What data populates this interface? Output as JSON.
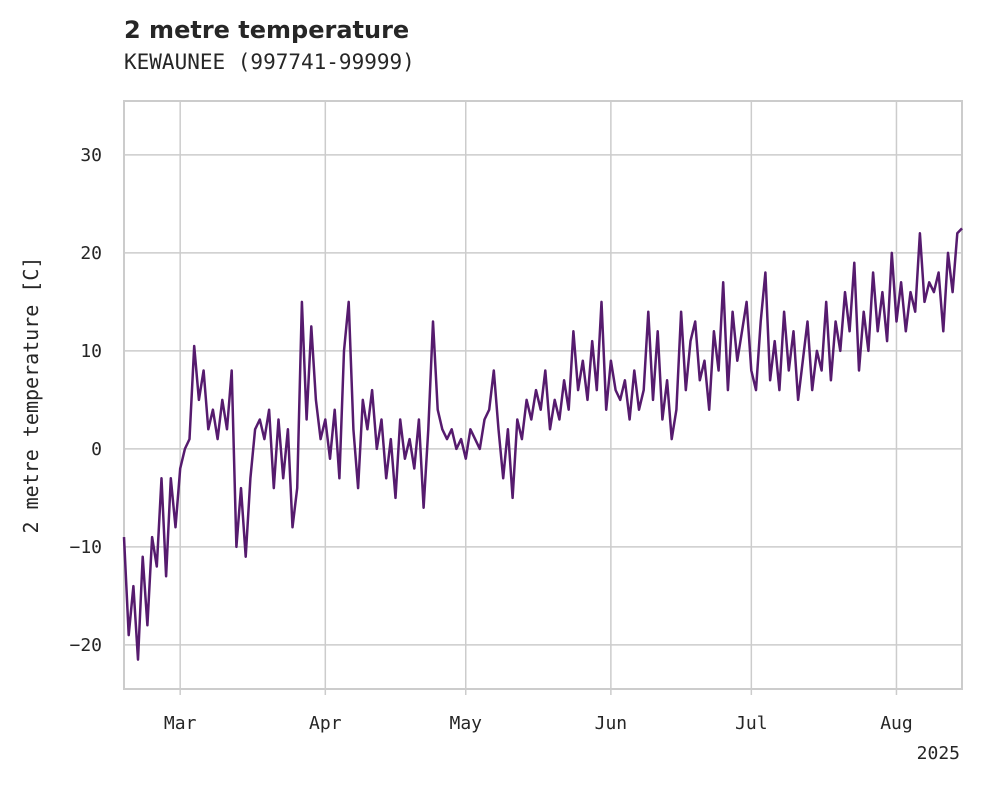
{
  "title": "2 metre temperature",
  "subtitle": "KEWAUNEE (997741-99999)",
  "colors": {
    "line": "#561b6e",
    "grid": "#cccccc",
    "frame": "#cccccc",
    "text": "#262626"
  },
  "chart_data": {
    "type": "line",
    "title": "2 metre temperature",
    "subtitle": "KEWAUNEE (997741-99999)",
    "xlabel": "",
    "ylabel": "2 metre temperature [C]",
    "xlim": [
      "2025-02-17",
      "2025-08-15"
    ],
    "ylim": [
      -24.5,
      35.5
    ],
    "yticks": [
      -20,
      -10,
      0,
      10,
      20,
      30
    ],
    "xticks": [
      {
        "date": "2025-03-01",
        "label": "Mar"
      },
      {
        "date": "2025-04-01",
        "label": "Apr"
      },
      {
        "date": "2025-05-01",
        "label": "May"
      },
      {
        "date": "2025-06-01",
        "label": "Jun"
      },
      {
        "date": "2025-07-01",
        "label": "Jul"
      },
      {
        "date": "2025-08-01",
        "label": "Aug"
      }
    ],
    "x_offset_label": "2025",
    "grid": true,
    "series": [
      {
        "points": [
          [
            "2025-02-17",
            -9
          ],
          [
            "2025-02-18",
            -19
          ],
          [
            "2025-02-19",
            -14
          ],
          [
            "2025-02-20",
            -21.5
          ],
          [
            "2025-02-21",
            -11
          ],
          [
            "2025-02-22",
            -18
          ],
          [
            "2025-02-23",
            -9
          ],
          [
            "2025-02-24",
            -12
          ],
          [
            "2025-02-25",
            -3
          ],
          [
            "2025-02-26",
            -13
          ],
          [
            "2025-02-27",
            -3
          ],
          [
            "2025-02-28",
            -8
          ],
          [
            "2025-03-01",
            -2
          ],
          [
            "2025-03-02",
            0
          ],
          [
            "2025-03-03",
            1
          ],
          [
            "2025-03-04",
            10.5
          ],
          [
            "2025-03-05",
            5
          ],
          [
            "2025-03-06",
            8
          ],
          [
            "2025-03-07",
            2
          ],
          [
            "2025-03-08",
            4
          ],
          [
            "2025-03-09",
            1
          ],
          [
            "2025-03-10",
            5
          ],
          [
            "2025-03-11",
            2
          ],
          [
            "2025-03-12",
            8
          ],
          [
            "2025-03-13",
            -10
          ],
          [
            "2025-03-14",
            -4
          ],
          [
            "2025-03-15",
            -11
          ],
          [
            "2025-03-16",
            -3
          ],
          [
            "2025-03-17",
            2
          ],
          [
            "2025-03-18",
            3
          ],
          [
            "2025-03-19",
            1
          ],
          [
            "2025-03-20",
            4
          ],
          [
            "2025-03-21",
            -4
          ],
          [
            "2025-03-22",
            3
          ],
          [
            "2025-03-23",
            -3
          ],
          [
            "2025-03-24",
            2
          ],
          [
            "2025-03-25",
            -8
          ],
          [
            "2025-03-26",
            -4
          ],
          [
            "2025-03-27",
            15
          ],
          [
            "2025-03-28",
            3
          ],
          [
            "2025-03-29",
            12.5
          ],
          [
            "2025-03-30",
            5
          ],
          [
            "2025-03-31",
            1
          ],
          [
            "2025-04-01",
            3
          ],
          [
            "2025-04-02",
            -1
          ],
          [
            "2025-04-03",
            4
          ],
          [
            "2025-04-04",
            -3
          ],
          [
            "2025-04-05",
            10
          ],
          [
            "2025-04-06",
            15
          ],
          [
            "2025-04-07",
            2
          ],
          [
            "2025-04-08",
            -4
          ],
          [
            "2025-04-09",
            5
          ],
          [
            "2025-04-10",
            2
          ],
          [
            "2025-04-11",
            6
          ],
          [
            "2025-04-12",
            0
          ],
          [
            "2025-04-13",
            3
          ],
          [
            "2025-04-14",
            -3
          ],
          [
            "2025-04-15",
            1
          ],
          [
            "2025-04-16",
            -5
          ],
          [
            "2025-04-17",
            3
          ],
          [
            "2025-04-18",
            -1
          ],
          [
            "2025-04-19",
            1
          ],
          [
            "2025-04-20",
            -2
          ],
          [
            "2025-04-21",
            3
          ],
          [
            "2025-04-22",
            -6
          ],
          [
            "2025-04-23",
            2
          ],
          [
            "2025-04-24",
            13
          ],
          [
            "2025-04-25",
            4
          ],
          [
            "2025-04-26",
            2
          ],
          [
            "2025-04-27",
            1
          ],
          [
            "2025-04-28",
            2
          ],
          [
            "2025-04-29",
            0
          ],
          [
            "2025-04-30",
            1
          ],
          [
            "2025-05-01",
            -1
          ],
          [
            "2025-05-02",
            2
          ],
          [
            "2025-05-03",
            1
          ],
          [
            "2025-05-04",
            0
          ],
          [
            "2025-05-05",
            3
          ],
          [
            "2025-05-06",
            4
          ],
          [
            "2025-05-07",
            8
          ],
          [
            "2025-05-08",
            2
          ],
          [
            "2025-05-09",
            -3
          ],
          [
            "2025-05-10",
            2
          ],
          [
            "2025-05-11",
            -5
          ],
          [
            "2025-05-12",
            3
          ],
          [
            "2025-05-13",
            1
          ],
          [
            "2025-05-14",
            5
          ],
          [
            "2025-05-15",
            3
          ],
          [
            "2025-05-16",
            6
          ],
          [
            "2025-05-17",
            4
          ],
          [
            "2025-05-18",
            8
          ],
          [
            "2025-05-19",
            2
          ],
          [
            "2025-05-20",
            5
          ],
          [
            "2025-05-21",
            3
          ],
          [
            "2025-05-22",
            7
          ],
          [
            "2025-05-23",
            4
          ],
          [
            "2025-05-24",
            12
          ],
          [
            "2025-05-25",
            6
          ],
          [
            "2025-05-26",
            9
          ],
          [
            "2025-05-27",
            5
          ],
          [
            "2025-05-28",
            11
          ],
          [
            "2025-05-29",
            6
          ],
          [
            "2025-05-30",
            15
          ],
          [
            "2025-05-31",
            4
          ],
          [
            "2025-06-01",
            9
          ],
          [
            "2025-06-02",
            6
          ],
          [
            "2025-06-03",
            5
          ],
          [
            "2025-06-04",
            7
          ],
          [
            "2025-06-05",
            3
          ],
          [
            "2025-06-06",
            8
          ],
          [
            "2025-06-07",
            4
          ],
          [
            "2025-06-08",
            6
          ],
          [
            "2025-06-09",
            14
          ],
          [
            "2025-06-10",
            5
          ],
          [
            "2025-06-11",
            12
          ],
          [
            "2025-06-12",
            3
          ],
          [
            "2025-06-13",
            7
          ],
          [
            "2025-06-14",
            1
          ],
          [
            "2025-06-15",
            4
          ],
          [
            "2025-06-16",
            14
          ],
          [
            "2025-06-17",
            6
          ],
          [
            "2025-06-18",
            11
          ],
          [
            "2025-06-19",
            13
          ],
          [
            "2025-06-20",
            7
          ],
          [
            "2025-06-21",
            9
          ],
          [
            "2025-06-22",
            4
          ],
          [
            "2025-06-23",
            12
          ],
          [
            "2025-06-24",
            8
          ],
          [
            "2025-06-25",
            17
          ],
          [
            "2025-06-26",
            6
          ],
          [
            "2025-06-27",
            14
          ],
          [
            "2025-06-28",
            9
          ],
          [
            "2025-06-29",
            12
          ],
          [
            "2025-06-30",
            15
          ],
          [
            "2025-07-01",
            8
          ],
          [
            "2025-07-02",
            6
          ],
          [
            "2025-07-03",
            13
          ],
          [
            "2025-07-04",
            18
          ],
          [
            "2025-07-05",
            7
          ],
          [
            "2025-07-06",
            11
          ],
          [
            "2025-07-07",
            6
          ],
          [
            "2025-07-08",
            14
          ],
          [
            "2025-07-09",
            8
          ],
          [
            "2025-07-10",
            12
          ],
          [
            "2025-07-11",
            5
          ],
          [
            "2025-07-12",
            9
          ],
          [
            "2025-07-13",
            13
          ],
          [
            "2025-07-14",
            6
          ],
          [
            "2025-07-15",
            10
          ],
          [
            "2025-07-16",
            8
          ],
          [
            "2025-07-17",
            15
          ],
          [
            "2025-07-18",
            7
          ],
          [
            "2025-07-19",
            13
          ],
          [
            "2025-07-20",
            10
          ],
          [
            "2025-07-21",
            16
          ],
          [
            "2025-07-22",
            12
          ],
          [
            "2025-07-23",
            19
          ],
          [
            "2025-07-24",
            8
          ],
          [
            "2025-07-25",
            14
          ],
          [
            "2025-07-26",
            10
          ],
          [
            "2025-07-27",
            18
          ],
          [
            "2025-07-28",
            12
          ],
          [
            "2025-07-29",
            16
          ],
          [
            "2025-07-30",
            11
          ],
          [
            "2025-07-31",
            20
          ],
          [
            "2025-08-01",
            13
          ],
          [
            "2025-08-02",
            17
          ],
          [
            "2025-08-03",
            12
          ],
          [
            "2025-08-04",
            16
          ],
          [
            "2025-08-05",
            14
          ],
          [
            "2025-08-06",
            22
          ],
          [
            "2025-08-07",
            15
          ],
          [
            "2025-08-08",
            17
          ],
          [
            "2025-08-09",
            16
          ],
          [
            "2025-08-10",
            18
          ],
          [
            "2025-08-11",
            12
          ],
          [
            "2025-08-12",
            20
          ],
          [
            "2025-08-13",
            16
          ],
          [
            "2025-08-14",
            22
          ],
          [
            "2025-08-15",
            22.5
          ]
        ]
      }
    ]
  }
}
